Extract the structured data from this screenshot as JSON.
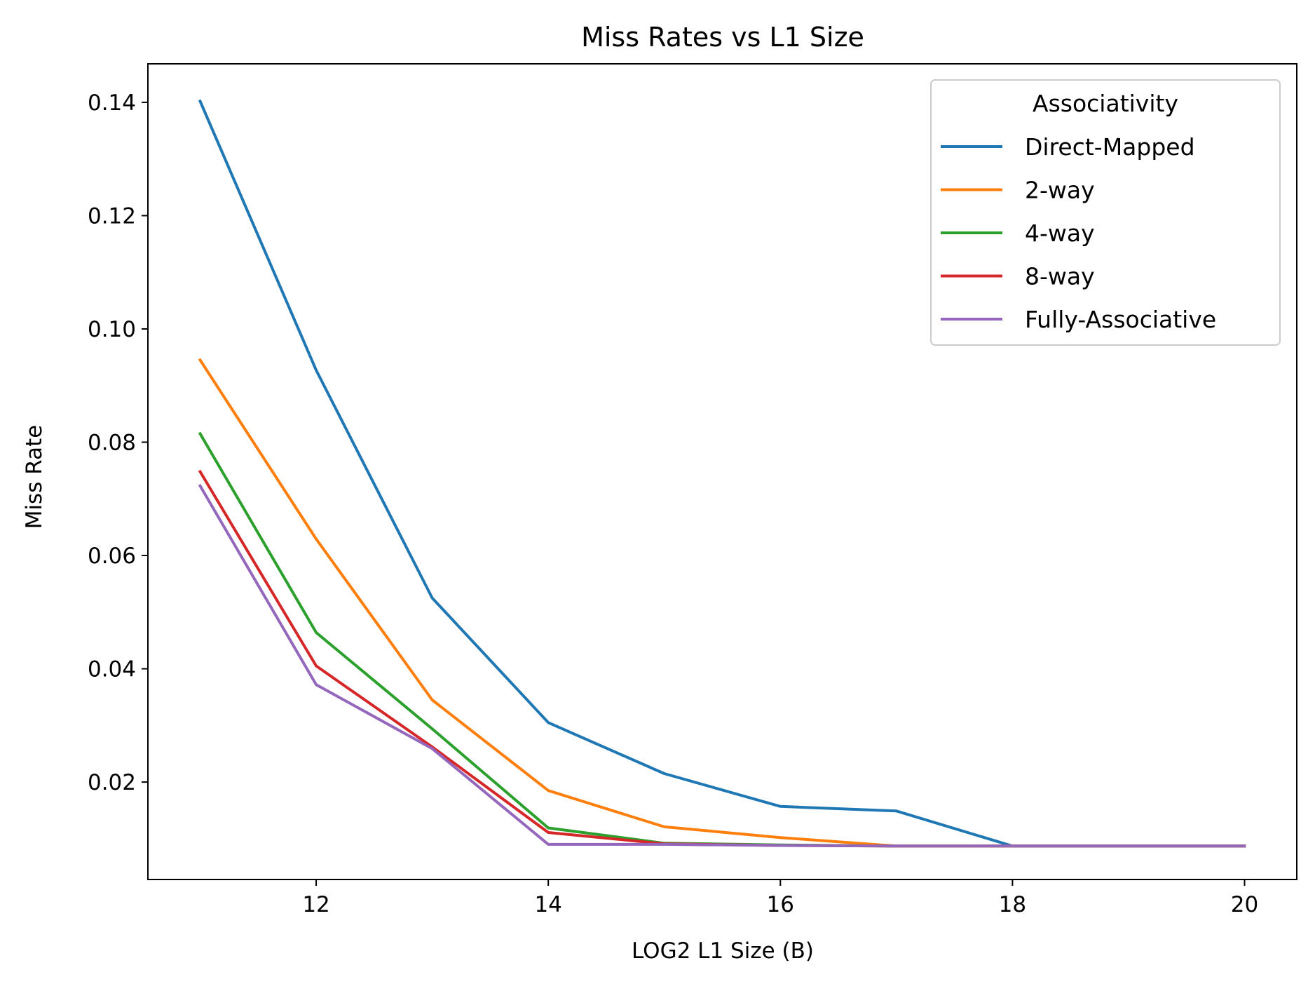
{
  "chart_data": {
    "type": "line",
    "title": "Miss Rates vs L1 Size",
    "xlabel": "LOG2 L1 Size (B)",
    "ylabel": "Miss Rate",
    "xlim": [
      10.55,
      20.45
    ],
    "ylim": [
      0.0028,
      0.1468
    ],
    "xticks": [
      12,
      14,
      16,
      18,
      20
    ],
    "xtick_labels": [
      "12",
      "14",
      "16",
      "18",
      "20"
    ],
    "yticks": [
      0.02,
      0.04,
      0.06,
      0.08,
      0.1,
      0.12,
      0.14
    ],
    "ytick_labels": [
      "0.02",
      "0.04",
      "0.06",
      "0.08",
      "0.10",
      "0.12",
      "0.14"
    ],
    "grid": false,
    "legend": {
      "title": "Associativity",
      "placement": "top-right"
    },
    "x": [
      11,
      12,
      13,
      14,
      15,
      16,
      17,
      18,
      19,
      20
    ],
    "series": [
      {
        "name": "Direct-Mapped",
        "color": "#1f77b4",
        "values": [
          0.1402,
          0.0927,
          0.0525,
          0.0305,
          0.0215,
          0.0157,
          0.0149,
          0.0087,
          0.0087,
          0.0087
        ]
      },
      {
        "name": "2-way",
        "color": "#ff7f0e",
        "values": [
          0.0945,
          0.0629,
          0.0345,
          0.0185,
          0.0121,
          0.0102,
          0.0087,
          0.0087,
          0.0087,
          0.0087
        ]
      },
      {
        "name": "4-way",
        "color": "#2ca02c",
        "values": [
          0.0815,
          0.0464,
          0.0294,
          0.0119,
          0.0092,
          0.0089,
          0.0087,
          0.0087,
          0.0087,
          0.0087
        ]
      },
      {
        "name": "8-way",
        "color": "#d62728",
        "values": [
          0.0748,
          0.0405,
          0.0262,
          0.0111,
          0.0091,
          0.0088,
          0.0087,
          0.0087,
          0.0087,
          0.0087
        ]
      },
      {
        "name": "Fully-Associative",
        "color": "#9467bd",
        "values": [
          0.0723,
          0.0372,
          0.0259,
          0.009,
          0.009,
          0.0088,
          0.0087,
          0.0087,
          0.0087,
          0.0087
        ]
      }
    ]
  }
}
